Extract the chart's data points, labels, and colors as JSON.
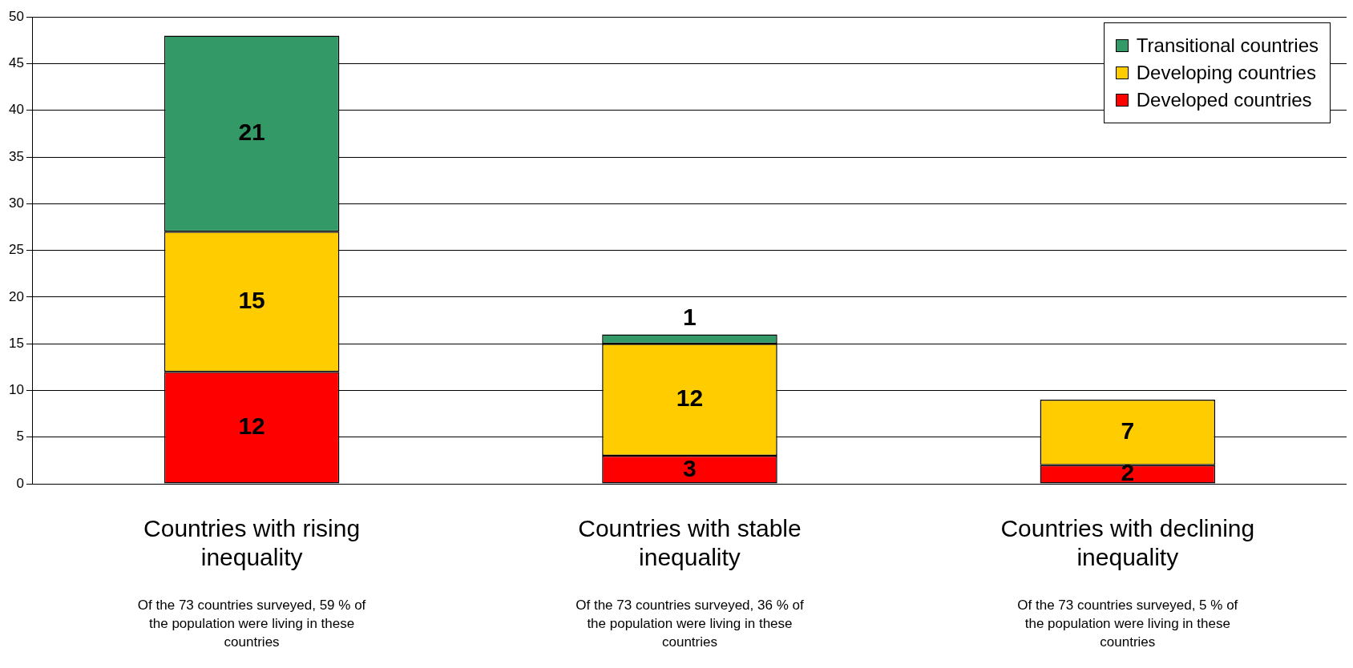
{
  "chart_data": {
    "type": "bar",
    "stacked": true,
    "categories": [
      "Countries with rising inequality",
      "Countries with stable inequality",
      "Countries with declining inequality"
    ],
    "series": [
      {
        "name": "Developed countries",
        "color": "#ff0000",
        "values": [
          12,
          3,
          2
        ]
      },
      {
        "name": "Developing countries",
        "color": "#ffcc00",
        "values": [
          15,
          12,
          7
        ]
      },
      {
        "name": "Transitional countries",
        "color": "#339966",
        "values": [
          21,
          1,
          null
        ]
      }
    ],
    "ylim": [
      0,
      50
    ],
    "yticks": [
      0,
      5,
      10,
      15,
      20,
      25,
      30,
      35,
      40,
      45,
      50
    ],
    "grid": "y",
    "legend": "top right",
    "data_labels": true,
    "annotations": [
      "Of the 73 countries surveyed, 59 % of the population were living in these countries",
      "Of the 73 countries surveyed, 36 % of the population were living in these countries",
      "Of the 73 countries surveyed, 5 % of the population were living in these countries"
    ]
  }
}
